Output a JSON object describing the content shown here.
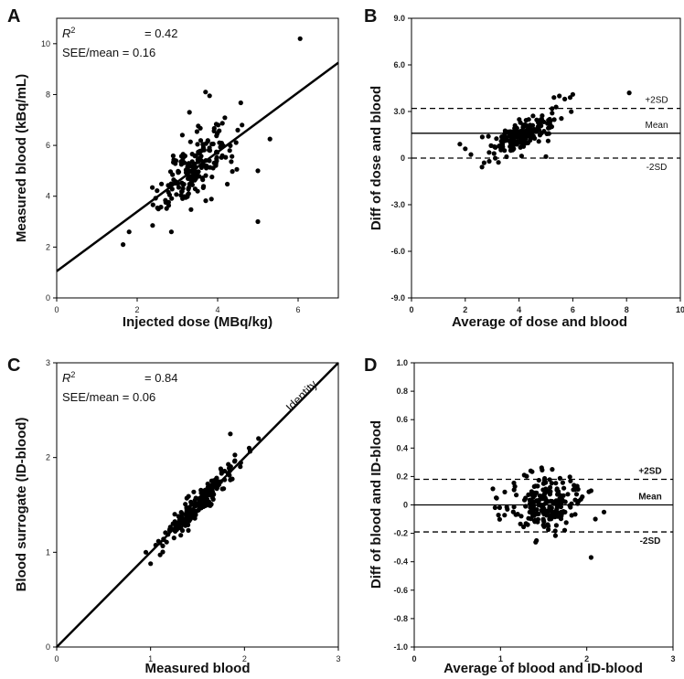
{
  "chart_data": [
    {
      "panel": "A",
      "type": "scatter",
      "xlabel": "Injected dose (MBq/kg)",
      "ylabel": "Measured blood (kBq/mL)",
      "xlim": [
        0,
        7
      ],
      "ylim": [
        0,
        11
      ],
      "xticks": [
        "0",
        "2",
        "4",
        "6"
      ],
      "xtick_values": [
        0,
        2,
        4,
        6
      ],
      "yticks": [
        "0",
        "2",
        "4",
        "6",
        "8",
        "10"
      ],
      "ytick_values": [
        0,
        2,
        4,
        6,
        8,
        10
      ],
      "annotation": {
        "r2_label": "R",
        "r2_sup": "2",
        "r2_value": "= 0.42",
        "see_text": "SEE/mean = 0.16"
      },
      "fit_line": {
        "x": [
          0,
          7
        ],
        "y": [
          1.05,
          9.25
        ]
      },
      "cluster": {
        "n": 190,
        "x_center": 3.4,
        "x_sd": 0.45,
        "slope": 1.17,
        "intercept": 1.05,
        "noise_sd": 0.6
      },
      "points": [
        [
          6.05,
          10.2
        ],
        [
          5.3,
          6.25
        ],
        [
          5.0,
          5.0
        ],
        [
          5.0,
          3.0
        ],
        [
          3.7,
          8.1
        ],
        [
          3.8,
          7.95
        ],
        [
          3.3,
          7.3
        ],
        [
          1.65,
          2.1
        ],
        [
          1.8,
          2.6
        ],
        [
          2.85,
          2.6
        ],
        [
          4.5,
          6.6
        ],
        [
          4.3,
          5.8
        ]
      ]
    },
    {
      "panel": "B",
      "type": "scatter",
      "xlabel": "Average of dose and blood",
      "ylabel": "Diff of dose and blood",
      "xlim": [
        0,
        10
      ],
      "ylim": [
        -9,
        9
      ],
      "xticks": [
        "0",
        "2",
        "4",
        "6",
        "8",
        "10"
      ],
      "xtick_values": [
        0,
        2,
        4,
        6,
        8,
        10
      ],
      "yticks": [
        "-9.0",
        "-6.0",
        "-3.0",
        "0",
        "3.0",
        "6.0",
        "9.0"
      ],
      "ytick_values": [
        -9,
        -6,
        -3,
        0,
        3,
        6,
        9
      ],
      "mean": 1.6,
      "plus2sd": 3.2,
      "minus2sd": 0.0,
      "line_labels": {
        "plus": "+2SD",
        "mean": "Mean",
        "minus": "-2SD"
      },
      "cluster": {
        "n": 190,
        "x_center": 4.2,
        "x_sd": 0.6,
        "slope": 0.75,
        "intercept": -1.6,
        "noise_sd": 0.45
      },
      "points": [
        [
          8.1,
          4.2
        ],
        [
          6.0,
          4.1
        ],
        [
          5.9,
          3.9
        ],
        [
          5.5,
          4.0
        ],
        [
          5.3,
          3.9
        ],
        [
          5.7,
          3.8
        ],
        [
          2.0,
          0.6
        ],
        [
          2.7,
          -0.3
        ],
        [
          5.0,
          0.1
        ],
        [
          1.8,
          0.9
        ]
      ]
    },
    {
      "panel": "C",
      "type": "scatter",
      "xlabel": "Measured blood",
      "ylabel": "Blood surrogate (ID-blood)",
      "xlim": [
        0,
        3
      ],
      "ylim": [
        0,
        3
      ],
      "xticks": [
        "0",
        "1",
        "2",
        "3"
      ],
      "xtick_values": [
        0,
        1,
        2,
        3
      ],
      "yticks": [
        "0",
        "1",
        "2",
        "3"
      ],
      "ytick_values": [
        0,
        1,
        2,
        3
      ],
      "annotation": {
        "r2_label": "R",
        "r2_sup": "2",
        "r2_value": "= 0.84",
        "see_text": "SEE/mean = 0.06"
      },
      "identity_label": "Identity",
      "identity_line": {
        "x": [
          0,
          3
        ],
        "y": [
          0,
          3
        ]
      },
      "cluster": {
        "n": 210,
        "x_center": 1.5,
        "x_sd": 0.2,
        "slope": 1.0,
        "intercept": 0.0,
        "noise_sd": 0.07
      },
      "points": [
        [
          0.95,
          1.0
        ],
        [
          1.0,
          0.88
        ],
        [
          1.85,
          2.25
        ],
        [
          2.15,
          2.2
        ],
        [
          2.05,
          2.1
        ],
        [
          1.1,
          1.1
        ]
      ]
    },
    {
      "panel": "D",
      "type": "scatter",
      "xlabel": "Average of blood and ID-blood",
      "ylabel": "Diff of blood and ID-blood",
      "xlim": [
        0,
        3
      ],
      "ylim": [
        -1,
        1
      ],
      "xticks": [
        "0",
        "1",
        "2",
        "3"
      ],
      "xtick_values": [
        0,
        1,
        2,
        3
      ],
      "yticks": [
        "-1.0",
        "-0.8",
        "-0.6",
        "-0.4",
        "-0.2",
        "0",
        "0.2",
        "0.4",
        "0.6",
        "0.8",
        "1.0"
      ],
      "ytick_values": [
        -1,
        -0.8,
        -0.6,
        -0.4,
        -0.2,
        0,
        0.2,
        0.4,
        0.6,
        0.8,
        1.0
      ],
      "mean": 0.0,
      "plus2sd": 0.18,
      "minus2sd": -0.19,
      "line_labels": {
        "plus": "+2SD",
        "mean": "Mean",
        "minus": "-2SD"
      },
      "cluster": {
        "n": 210,
        "x_center": 1.5,
        "x_sd": 0.2,
        "slope": 0.0,
        "intercept": 0.0,
        "noise_sd": 0.085
      },
      "points": [
        [
          2.05,
          -0.37
        ],
        [
          0.95,
          0.05
        ],
        [
          2.05,
          0.1
        ],
        [
          2.1,
          -0.1
        ],
        [
          1.35,
          0.24
        ],
        [
          1.6,
          0.25
        ],
        [
          2.2,
          -0.05
        ]
      ]
    }
  ]
}
